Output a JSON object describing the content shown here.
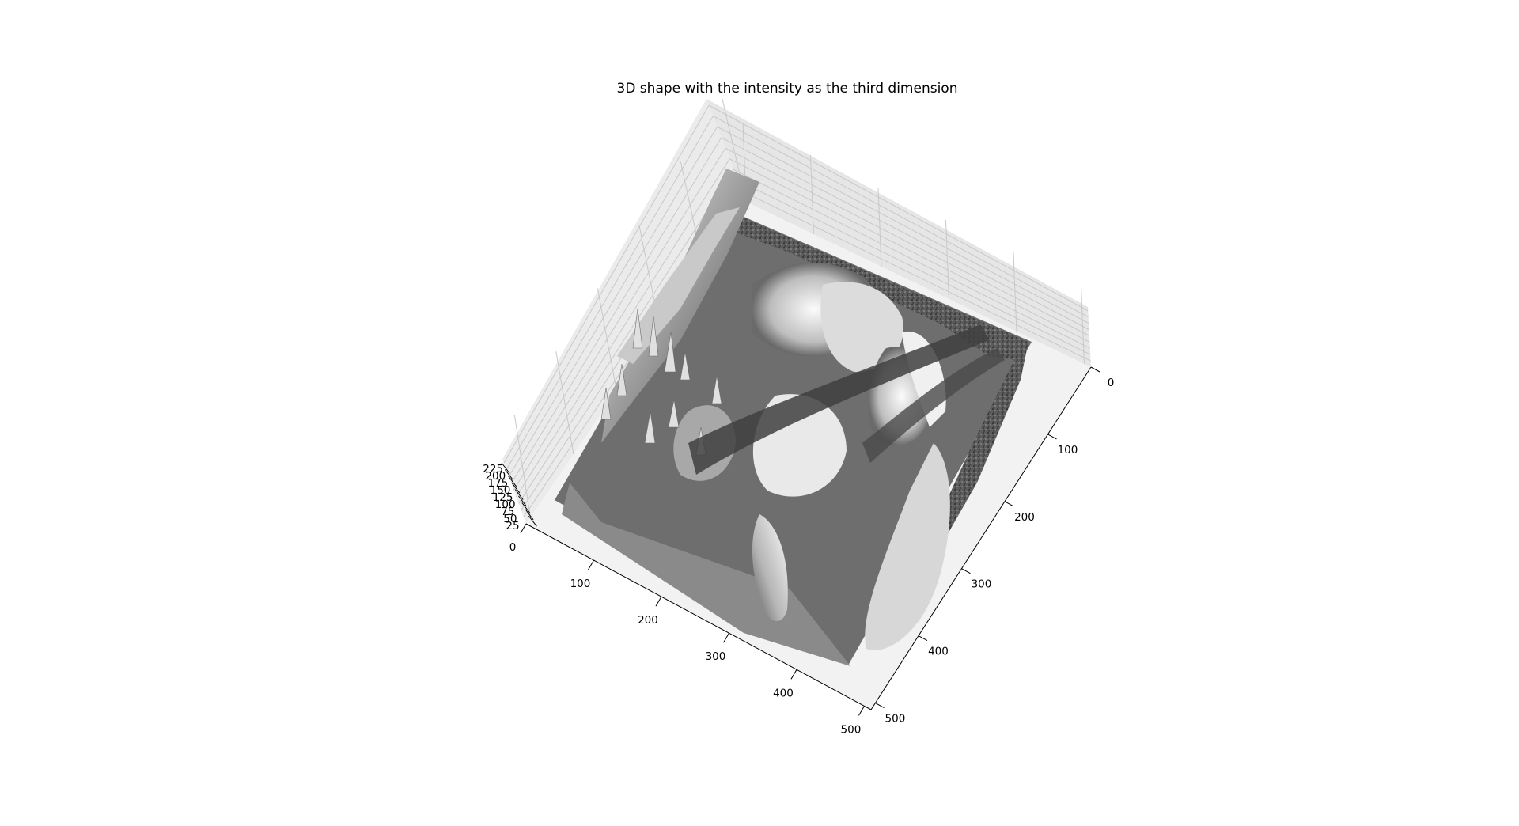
{
  "chart_data": {
    "type": "surface3d",
    "title": "3D shape with the intensity as the third dimension",
    "colormap": "gray",
    "x_axis": {
      "label": "",
      "ticks": [
        0,
        100,
        200,
        300,
        400,
        500
      ],
      "range": [
        0,
        510
      ]
    },
    "y_axis": {
      "label": "",
      "ticks": [
        0,
        100,
        200,
        300,
        400,
        500
      ],
      "range": [
        0,
        510
      ]
    },
    "z_axis": {
      "label": "",
      "ticks": [
        25,
        50,
        75,
        100,
        125,
        150,
        175,
        200,
        225
      ],
      "range": [
        0,
        240
      ]
    },
    "grid": true,
    "pane_color": "#f2f2f2"
  }
}
